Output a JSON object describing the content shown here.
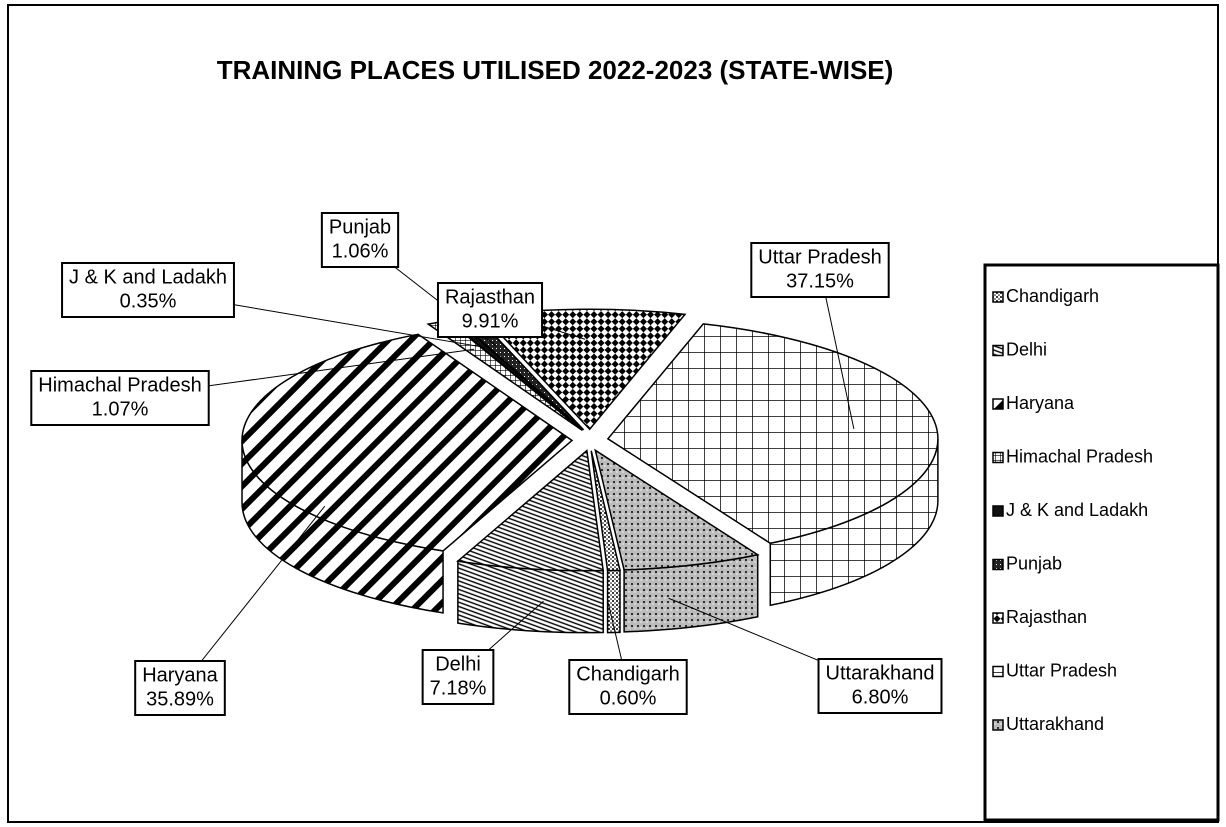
{
  "chart_data": {
    "type": "pie",
    "title": "TRAINING PLACES UTILISED 2022-2023 (STATE-WISE)",
    "categories": [
      "Chandigarh",
      "Delhi",
      "Haryana",
      "Himachal Pradesh",
      "J & K and Ladakh",
      "Punjab",
      "Rajasthan",
      "Uttar Pradesh",
      "Uttarakhand"
    ],
    "values": [
      0.6,
      7.18,
      35.89,
      1.07,
      0.35,
      1.06,
      9.91,
      37.15,
      6.8
    ],
    "value_labels": [
      "0.60%",
      "7.18%",
      "35.89%",
      "1.07%",
      "0.35%",
      "1.06%",
      "9.91%",
      "37.15%",
      "6.80%"
    ],
    "legend": "right"
  }
}
